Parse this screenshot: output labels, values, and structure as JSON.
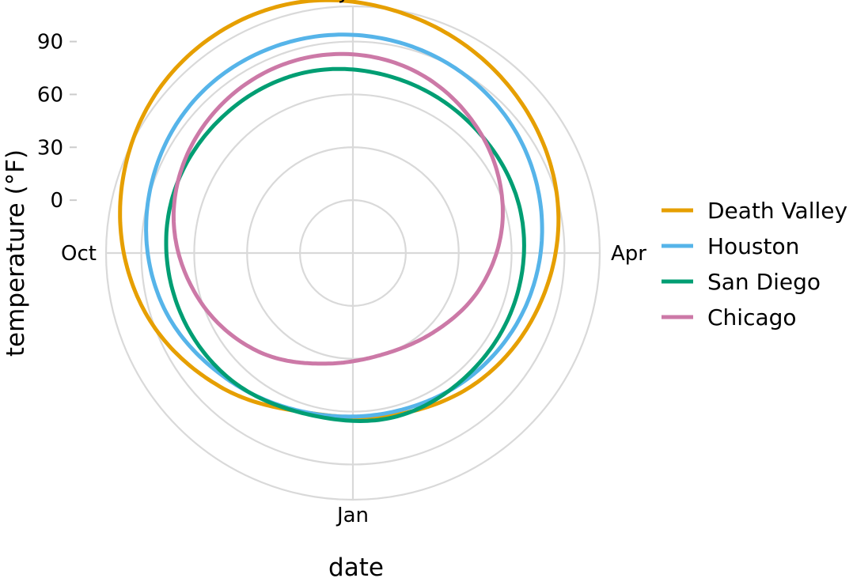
{
  "chart_data": {
    "type": "line",
    "coordinate_system": "polar",
    "xlabel": "date",
    "ylabel": "temperature (°F)",
    "angular_ticks": [
      "Jan",
      "Apr",
      "Jul",
      "Oct"
    ],
    "radial_ticks": [
      0,
      30,
      60,
      90
    ],
    "ylim": [
      -30,
      110
    ],
    "grid": true,
    "legend_position": "right",
    "series": [
      {
        "name": "Death Valley",
        "color": "#E69F00",
        "x": [
          "Jan",
          "Feb",
          "Mar",
          "Apr",
          "May",
          "Jun",
          "Jul",
          "Aug",
          "Sep",
          "Oct",
          "Nov",
          "Dec"
        ],
        "values": [
          65,
          72,
          80,
          90,
          99,
          108,
          116,
          115,
          106,
          93,
          77,
          64
        ]
      },
      {
        "name": "Houston",
        "color": "#56B4E9",
        "x": [
          "Jan",
          "Feb",
          "Mar",
          "Apr",
          "May",
          "Jun",
          "Jul",
          "Aug",
          "Sep",
          "Oct",
          "Nov",
          "Dec"
        ],
        "values": [
          63,
          67,
          73,
          80,
          87,
          92,
          95,
          95,
          90,
          82,
          71,
          64
        ]
      },
      {
        "name": "San Diego",
        "color": "#009E73",
        "x": [
          "Jan",
          "Feb",
          "Mar",
          "Apr",
          "May",
          "Jun",
          "Jul",
          "Aug",
          "Sep",
          "Oct",
          "Nov",
          "Dec"
        ],
        "values": [
          66,
          65,
          66,
          68,
          69,
          72,
          76,
          77,
          77,
          74,
          70,
          65
        ]
      },
      {
        "name": "Chicago",
        "color": "#CC79A7",
        "x": [
          "Jan",
          "Feb",
          "Mar",
          "Apr",
          "May",
          "Jun",
          "Jul",
          "Aug",
          "Sep",
          "Oct",
          "Nov",
          "Dec"
        ],
        "values": [
          30,
          34,
          45,
          58,
          70,
          80,
          84,
          82,
          75,
          62,
          48,
          35
        ]
      }
    ]
  }
}
